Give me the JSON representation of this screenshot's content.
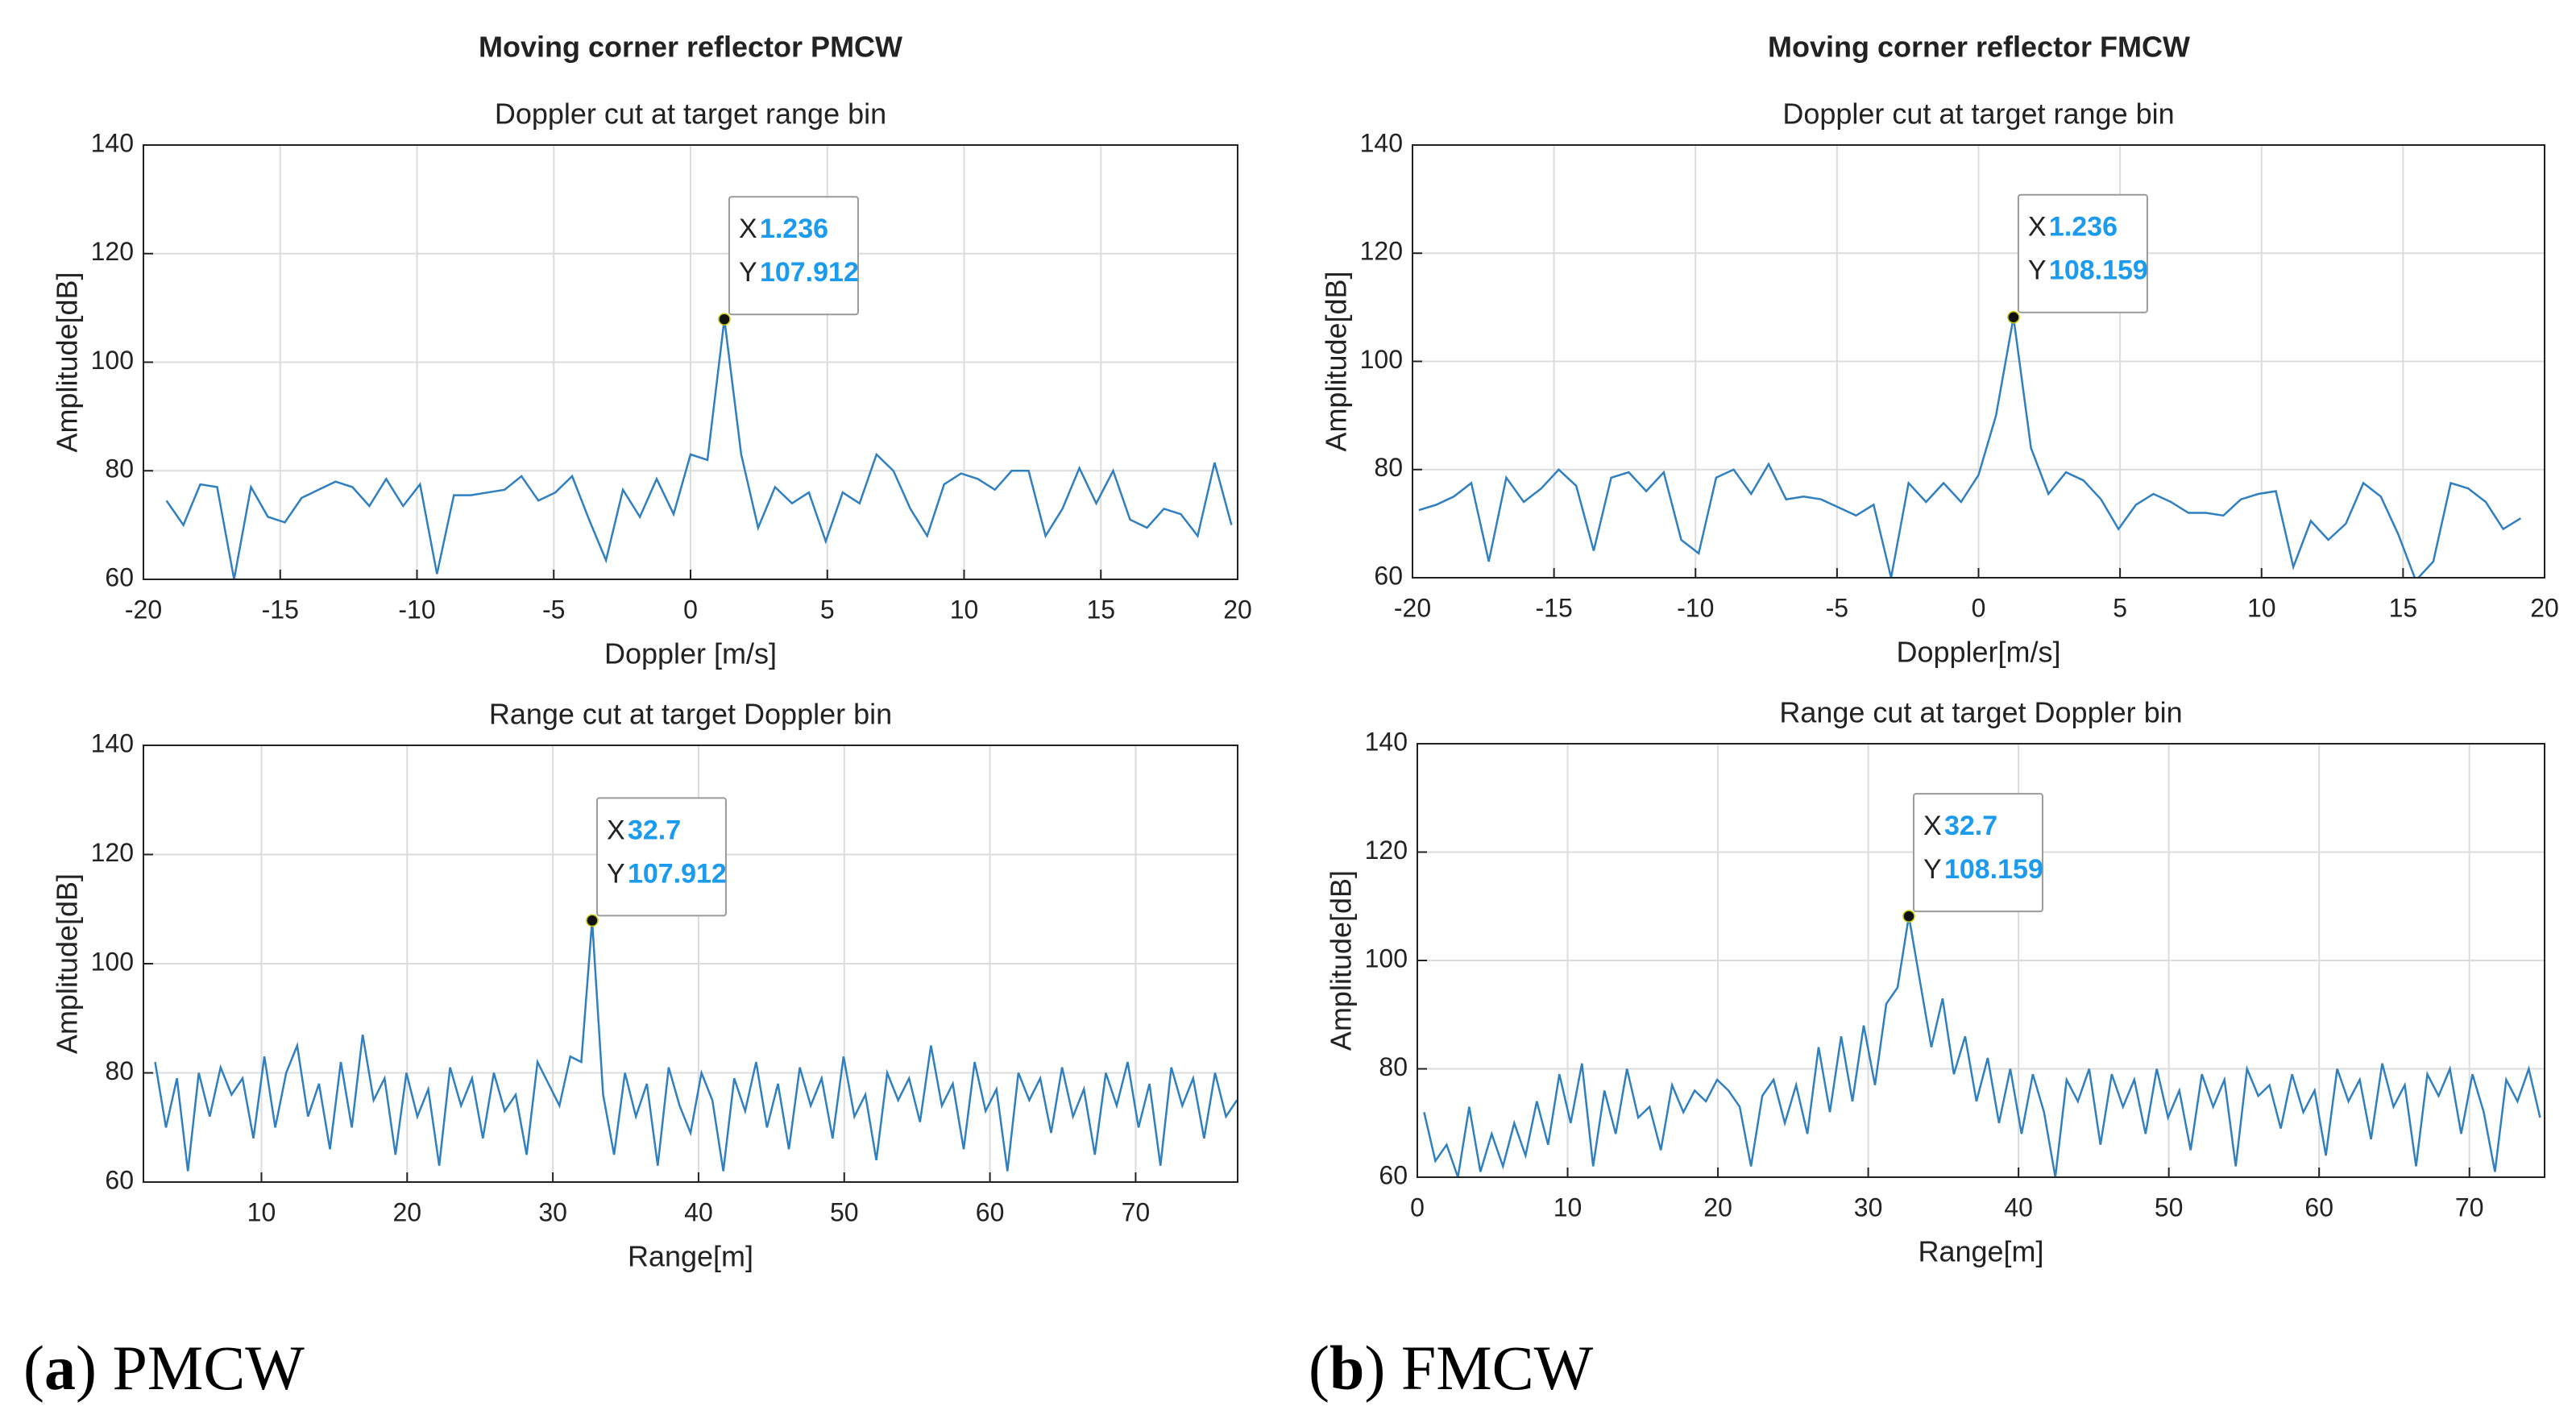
{
  "panels": [
    {
      "title": "Moving corner reflector PMCW",
      "caption": [
        "(",
        "a",
        ") PMCW"
      ]
    },
    {
      "title": "Moving corner reflector FMCW",
      "caption": [
        "(",
        "b",
        ") FMCW"
      ]
    }
  ],
  "chart_data": [
    {
      "type": "line",
      "title": "Doppler cut at target range bin",
      "xlabel": "Doppler [m/s]",
      "ylabel": "Amplitude[dB]",
      "xlim": [
        -20,
        20
      ],
      "ylim": [
        60,
        140
      ],
      "xticks": [
        -20,
        -15,
        -10,
        -5,
        0,
        5,
        10,
        15,
        20
      ],
      "yticks": [
        60,
        80,
        100,
        120,
        140
      ],
      "grid": true,
      "color": "#2f7fc1",
      "x": [
        -19.158,
        -18.54,
        -17.922,
        -17.304,
        -16.686,
        -16.068,
        -15.45,
        -14.832,
        -14.214,
        -13.596,
        -12.978,
        -12.36,
        -11.742,
        -11.124,
        -10.506,
        -9.888,
        -9.27,
        -8.652,
        -8.034,
        -7.416,
        -6.798,
        -6.18,
        -5.562,
        -4.944,
        -4.326,
        -3.708,
        -3.09,
        -2.472,
        -1.854,
        -1.236,
        -0.618,
        0,
        0.618,
        1.236,
        1.854,
        2.472,
        3.09,
        3.708,
        4.326,
        4.944,
        5.562,
        6.18,
        6.798,
        7.416,
        8.034,
        8.652,
        9.27,
        9.888,
        10.506,
        11.124,
        11.742,
        12.36,
        12.978,
        13.596,
        14.214,
        14.832,
        15.45,
        16.068,
        16.686,
        17.304,
        17.922,
        18.54,
        19.158,
        19.776
      ],
      "values": [
        74.5,
        70,
        77.5,
        77,
        60,
        77,
        71.5,
        70.5,
        75,
        76.5,
        78,
        77,
        73.5,
        78.5,
        73.5,
        77.5,
        61,
        75.5,
        75.5,
        76,
        76.5,
        79,
        74.5,
        76,
        79,
        71,
        63.5,
        76.5,
        71.5,
        78.5,
        72,
        83,
        82,
        107.912,
        83,
        69.5,
        77,
        74,
        76,
        67,
        76,
        74,
        83,
        80,
        73,
        68,
        77.5,
        79.5,
        78.5,
        76.5,
        80,
        80,
        68,
        73,
        80.5,
        74,
        80,
        71,
        69.5,
        73,
        72,
        68,
        81.5,
        70
      ],
      "datatip": {
        "x_label": "X",
        "x": 1.236,
        "y_label": "Y",
        "y": 107.912
      }
    },
    {
      "type": "line",
      "title": "Range cut at target Doppler bin",
      "xlabel": "Range[m]",
      "ylabel": "Amplitude[dB]",
      "xlim": [
        1.9,
        77
      ],
      "ylim": [
        60,
        140
      ],
      "xticks": [
        10,
        20,
        30,
        40,
        50,
        60,
        70
      ],
      "yticks": [
        60,
        80,
        100,
        120,
        140
      ],
      "grid": true,
      "color": "#2f7fc1",
      "x": [
        2.7,
        3.45,
        4.2,
        4.95,
        5.7,
        6.45,
        7.2,
        7.95,
        8.7,
        9.45,
        10.2,
        10.95,
        11.7,
        12.45,
        13.2,
        13.95,
        14.7,
        15.45,
        16.2,
        16.95,
        17.7,
        18.45,
        19.2,
        19.95,
        20.7,
        21.45,
        22.2,
        22.95,
        23.7,
        24.45,
        25.2,
        25.95,
        26.7,
        27.45,
        28.2,
        28.95,
        29.7,
        30.45,
        31.2,
        31.95,
        32.7,
        33.45,
        34.2,
        34.95,
        35.7,
        36.45,
        37.2,
        37.95,
        38.7,
        39.45,
        40.2,
        40.95,
        41.7,
        42.45,
        43.2,
        43.95,
        44.7,
        45.45,
        46.2,
        46.95,
        47.7,
        48.45,
        49.2,
        49.95,
        50.7,
        51.45,
        52.2,
        52.95,
        53.7,
        54.45,
        55.2,
        55.95,
        56.7,
        57.45,
        58.2,
        58.95,
        59.7,
        60.45,
        61.2,
        61.95,
        62.7,
        63.45,
        64.2,
        64.95,
        65.7,
        66.45,
        67.2,
        67.95,
        68.7,
        69.45,
        70.2,
        70.95,
        71.7,
        72.45,
        73.2,
        73.95,
        74.7,
        75.45,
        76.2,
        76.95
      ],
      "values": [
        82,
        70,
        79,
        62,
        80,
        72,
        81,
        76,
        79,
        68,
        83,
        70,
        80,
        85,
        72,
        78,
        66,
        82,
        70,
        87,
        75,
        79,
        65,
        80,
        72,
        77,
        63,
        81,
        74,
        79,
        68,
        80,
        73,
        76,
        65,
        82,
        78,
        74,
        83,
        82,
        107.912,
        76,
        65,
        80,
        72,
        78,
        63,
        81,
        74,
        69,
        80,
        75,
        62,
        79,
        73,
        82,
        70,
        78,
        66,
        81,
        74,
        79,
        68,
        83,
        72,
        76,
        64,
        80,
        75,
        79,
        71,
        85,
        74,
        78,
        66,
        82,
        73,
        77,
        62,
        80,
        75,
        79,
        69,
        81,
        72,
        77,
        65,
        80,
        74,
        82,
        70,
        78,
        63,
        81,
        74,
        79,
        68,
        80,
        72,
        75
      ],
      "datatip": {
        "x_label": "X",
        "x": 32.7,
        "y_label": "Y",
        "y": 107.912
      }
    },
    {
      "type": "line",
      "title": "Doppler cut at target range bin",
      "xlabel": "Doppler[m/s]",
      "ylabel": "Amplitude[dB]",
      "xlim": [
        -20,
        20
      ],
      "ylim": [
        60,
        140
      ],
      "xticks": [
        -20,
        -15,
        -10,
        -5,
        0,
        5,
        10,
        15,
        20
      ],
      "yticks": [
        60,
        80,
        100,
        120,
        140
      ],
      "grid": true,
      "color": "#2f7fc1",
      "x": [
        -19.776,
        -19.158,
        -18.54,
        -17.922,
        -17.304,
        -16.686,
        -16.068,
        -15.45,
        -14.832,
        -14.214,
        -13.596,
        -12.978,
        -12.36,
        -11.742,
        -11.124,
        -10.506,
        -9.888,
        -9.27,
        -8.652,
        -8.034,
        -7.416,
        -6.798,
        -6.18,
        -5.562,
        -4.944,
        -4.326,
        -3.708,
        -3.09,
        -2.472,
        -1.854,
        -1.236,
        -0.618,
        0,
        0.618,
        1.236,
        1.854,
        2.472,
        3.09,
        3.708,
        4.326,
        4.944,
        5.562,
        6.18,
        6.798,
        7.416,
        8.034,
        8.652,
        9.27,
        9.888,
        10.506,
        11.124,
        11.742,
        12.36,
        12.978,
        13.596,
        14.214,
        14.832,
        15.45,
        16.068,
        16.686,
        17.304,
        17.922,
        18.54,
        19.158
      ],
      "values": [
        72.5,
        73.5,
        75,
        77.5,
        63,
        78.5,
        74,
        76.5,
        80,
        77,
        65,
        78.5,
        79.5,
        76,
        79.5,
        67,
        64.5,
        78.5,
        80,
        75.5,
        81,
        74.5,
        75,
        74.5,
        73,
        71.5,
        73.5,
        60,
        77.5,
        74,
        77.5,
        74,
        79,
        90,
        108.159,
        84,
        75.5,
        79.5,
        78,
        74.5,
        69,
        73.5,
        75.5,
        74,
        72,
        72,
        71.5,
        74.5,
        75.5,
        76,
        62,
        70.5,
        67,
        70,
        77.5,
        75,
        68,
        59.5,
        63,
        77.5,
        76.5,
        74,
        69,
        71
      ],
      "datatip": {
        "x_label": "X",
        "x": 1.236,
        "y_label": "Y",
        "y": 108.159
      }
    },
    {
      "type": "line",
      "title": "Range cut at target Doppler bin",
      "xlabel": "Range[m]",
      "ylabel": "Amplitude[dB]",
      "xlim": [
        0,
        75
      ],
      "ylim": [
        60,
        140
      ],
      "xticks": [
        0,
        10,
        20,
        30,
        40,
        50,
        60,
        70
      ],
      "yticks": [
        60,
        80,
        100,
        120,
        140
      ],
      "grid": true,
      "color": "#2f7fc1",
      "x": [
        0.45,
        1.2,
        1.95,
        2.7,
        3.45,
        4.2,
        4.95,
        5.7,
        6.45,
        7.2,
        7.95,
        8.7,
        9.45,
        10.2,
        10.95,
        11.7,
        12.45,
        13.2,
        13.95,
        14.7,
        15.45,
        16.2,
        16.95,
        17.7,
        18.45,
        19.2,
        19.95,
        20.7,
        21.45,
        22.2,
        22.95,
        23.7,
        24.45,
        25.2,
        25.95,
        26.7,
        27.45,
        28.2,
        28.95,
        29.7,
        30.45,
        31.2,
        31.95,
        32.7,
        33.45,
        34.2,
        34.95,
        35.7,
        36.45,
        37.2,
        37.95,
        38.7,
        39.45,
        40.2,
        40.95,
        41.7,
        42.45,
        43.2,
        43.95,
        44.7,
        45.45,
        46.2,
        46.95,
        47.7,
        48.45,
        49.2,
        49.95,
        50.7,
        51.45,
        52.2,
        52.95,
        53.7,
        54.45,
        55.2,
        55.95,
        56.7,
        57.45,
        58.2,
        58.95,
        59.7,
        60.45,
        61.2,
        61.95,
        62.7,
        63.45,
        64.2,
        64.95,
        65.7,
        66.45,
        67.2,
        67.95,
        68.7,
        69.45,
        70.2,
        70.95,
        71.7,
        72.45,
        73.2,
        73.95,
        74.7
      ],
      "values": [
        72,
        63,
        66,
        60,
        73,
        61,
        68,
        62,
        70,
        64,
        74,
        66,
        79,
        70,
        81,
        62,
        76,
        68,
        80,
        71,
        73,
        65,
        77,
        72,
        76,
        74,
        78,
        76,
        73,
        62,
        75,
        78,
        70,
        77,
        68,
        84,
        72,
        86,
        74,
        88,
        77,
        92,
        95,
        108.159,
        96,
        84,
        93,
        79,
        86,
        74,
        82,
        70,
        80,
        68,
        79,
        72,
        60,
        78,
        74,
        80,
        66,
        79,
        73,
        78,
        68,
        80,
        71,
        76,
        65,
        79,
        73,
        78,
        62,
        80,
        75,
        77,
        69,
        79,
        72,
        76,
        64,
        80,
        74,
        78,
        67,
        81,
        73,
        77,
        62,
        79,
        75,
        80,
        68,
        79,
        72,
        61,
        78,
        74,
        80,
        71
      ],
      "datatip": {
        "x_label": "X",
        "x": 32.7,
        "y_label": "Y",
        "y": 108.159
      }
    }
  ]
}
